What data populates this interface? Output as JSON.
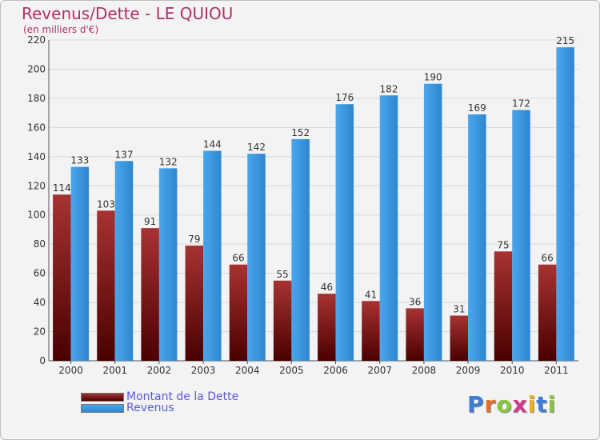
{
  "title": "Revenus/Dette - LE QUIOU",
  "subtitle": "(en milliers d'€)",
  "logo": {
    "text": "Proxiti"
  },
  "chart_data": {
    "type": "bar",
    "title": "Revenus/Dette - LE QUIOU",
    "subtitle": "(en milliers d'€)",
    "categories": [
      "2000",
      "2001",
      "2002",
      "2003",
      "2004",
      "2005",
      "2006",
      "2007",
      "2008",
      "2009",
      "2010",
      "2011"
    ],
    "series": [
      {
        "name": "Montant de la Dette",
        "color": "#8b1a1a",
        "values": [
          114,
          103,
          91,
          79,
          66,
          55,
          46,
          41,
          36,
          31,
          75,
          66
        ]
      },
      {
        "name": "Revenus",
        "color": "#3d9ae0",
        "values": [
          133,
          137,
          132,
          144,
          142,
          152,
          176,
          182,
          190,
          169,
          172,
          215
        ]
      }
    ],
    "ylim": [
      0,
      220
    ],
    "yticks": [
      0,
      20,
      40,
      60,
      80,
      100,
      120,
      140,
      160,
      180,
      200,
      220
    ],
    "grid": true,
    "legend_position": "bottom-left"
  }
}
